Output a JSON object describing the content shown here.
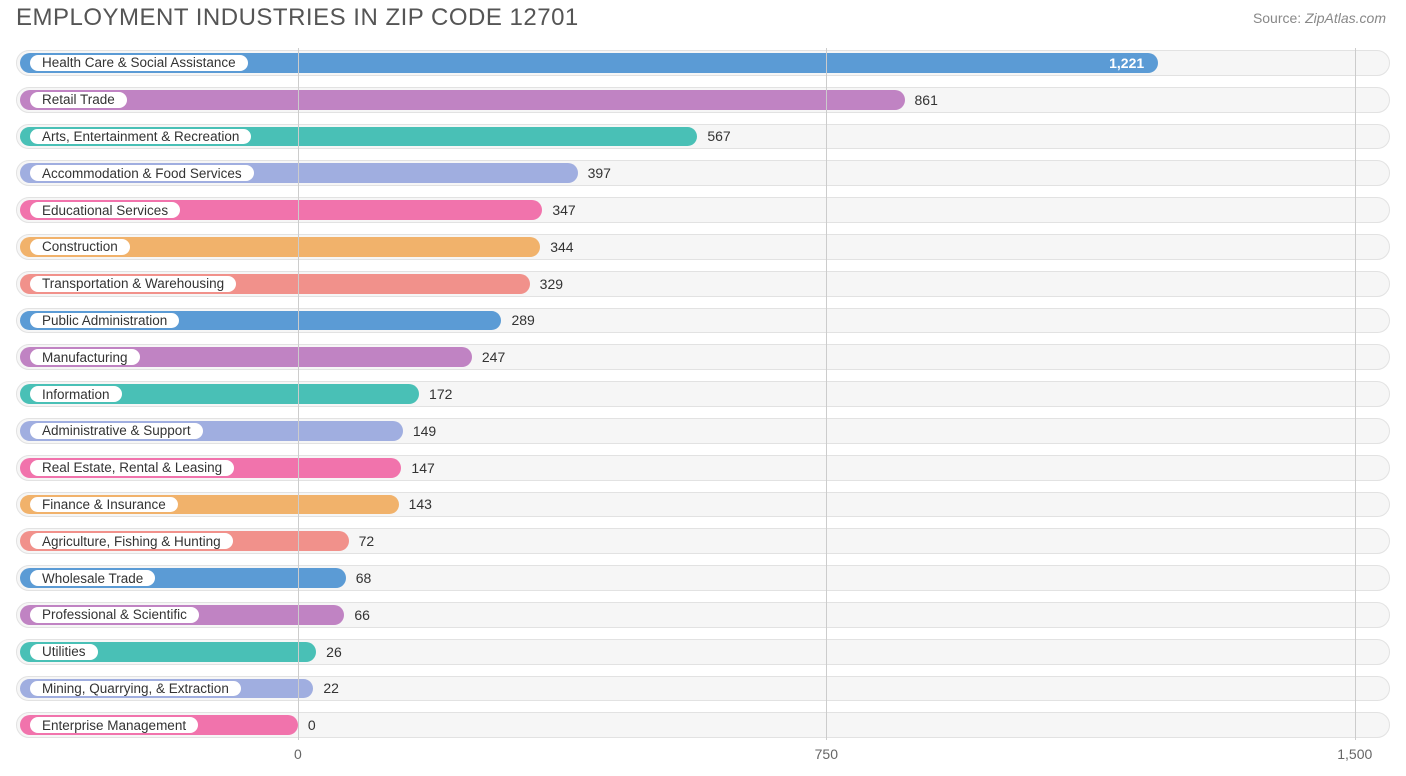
{
  "title": "EMPLOYMENT INDUSTRIES IN ZIP CODE 12701",
  "source_prefix": "Source:",
  "source_name": "ZipAtlas.com",
  "chart": {
    "type": "bar",
    "orientation": "horizontal",
    "xmin": -400,
    "xmax": 1550,
    "ticks": [
      {
        "value": 0,
        "label": "0"
      },
      {
        "value": 750,
        "label": "750"
      },
      {
        "value": 1500,
        "label": "1,500"
      }
    ],
    "gridline_color": "#cccccc",
    "track_bg": "#f6f6f6",
    "track_border": "#e2e2e2",
    "label_fontsize": 13.5,
    "value_fontsize": 14,
    "bars": [
      {
        "label": "Health Care & Social Assistance",
        "value": 1221,
        "display": "1,221",
        "color": "#5b9bd5",
        "value_inside": true
      },
      {
        "label": "Retail Trade",
        "value": 861,
        "display": "861",
        "color": "#c083c3",
        "value_inside": false
      },
      {
        "label": "Arts, Entertainment & Recreation",
        "value": 567,
        "display": "567",
        "color": "#49c0b6",
        "value_inside": false
      },
      {
        "label": "Accommodation & Food Services",
        "value": 397,
        "display": "397",
        "color": "#a0aee0",
        "value_inside": false
      },
      {
        "label": "Educational Services",
        "value": 347,
        "display": "347",
        "color": "#f173ac",
        "value_inside": false
      },
      {
        "label": "Construction",
        "value": 344,
        "display": "344",
        "color": "#f1b26b",
        "value_inside": false
      },
      {
        "label": "Transportation & Warehousing",
        "value": 329,
        "display": "329",
        "color": "#f1918b",
        "value_inside": false
      },
      {
        "label": "Public Administration",
        "value": 289,
        "display": "289",
        "color": "#5b9bd5",
        "value_inside": false
      },
      {
        "label": "Manufacturing",
        "value": 247,
        "display": "247",
        "color": "#c083c3",
        "value_inside": false
      },
      {
        "label": "Information",
        "value": 172,
        "display": "172",
        "color": "#49c0b6",
        "value_inside": false
      },
      {
        "label": "Administrative & Support",
        "value": 149,
        "display": "149",
        "color": "#a0aee0",
        "value_inside": false
      },
      {
        "label": "Real Estate, Rental & Leasing",
        "value": 147,
        "display": "147",
        "color": "#f173ac",
        "value_inside": false
      },
      {
        "label": "Finance & Insurance",
        "value": 143,
        "display": "143",
        "color": "#f1b26b",
        "value_inside": false
      },
      {
        "label": "Agriculture, Fishing & Hunting",
        "value": 72,
        "display": "72",
        "color": "#f1918b",
        "value_inside": false
      },
      {
        "label": "Wholesale Trade",
        "value": 68,
        "display": "68",
        "color": "#5b9bd5",
        "value_inside": false
      },
      {
        "label": "Professional & Scientific",
        "value": 66,
        "display": "66",
        "color": "#c083c3",
        "value_inside": false
      },
      {
        "label": "Utilities",
        "value": 26,
        "display": "26",
        "color": "#49c0b6",
        "value_inside": false
      },
      {
        "label": "Mining, Quarrying, & Extraction",
        "value": 22,
        "display": "22",
        "color": "#a0aee0",
        "value_inside": false
      },
      {
        "label": "Enterprise Management",
        "value": 0,
        "display": "0",
        "color": "#f173ac",
        "value_inside": false
      }
    ]
  }
}
